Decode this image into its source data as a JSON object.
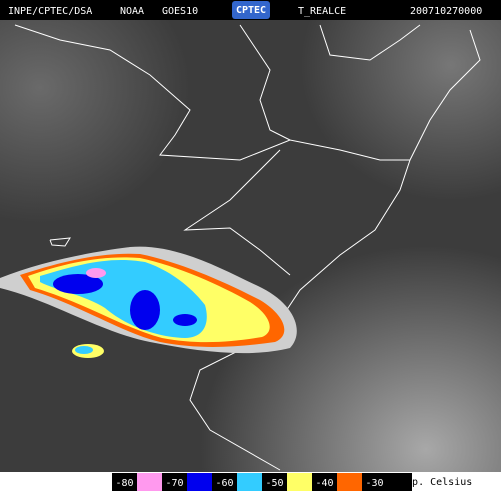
{
  "header": {
    "source": "INPE/CPTEC/DSA",
    "satellite": "NOAA",
    "instrument": "GOES10",
    "logo": "CPTEC",
    "product": "T_REALCE",
    "timestamp": "200710270000"
  },
  "legend": {
    "title": "Temp. Celsius",
    "items": [
      {
        "value": -80,
        "color": "#ff99ee"
      },
      {
        "value": -70,
        "color": "#0000ee"
      },
      {
        "value": -60,
        "color": "#33ccff"
      },
      {
        "value": -50,
        "color": "#ffff66"
      },
      {
        "value": -40,
        "color": "#ff6600"
      },
      {
        "value": -30,
        "color": "#000000"
      }
    ]
  }
}
